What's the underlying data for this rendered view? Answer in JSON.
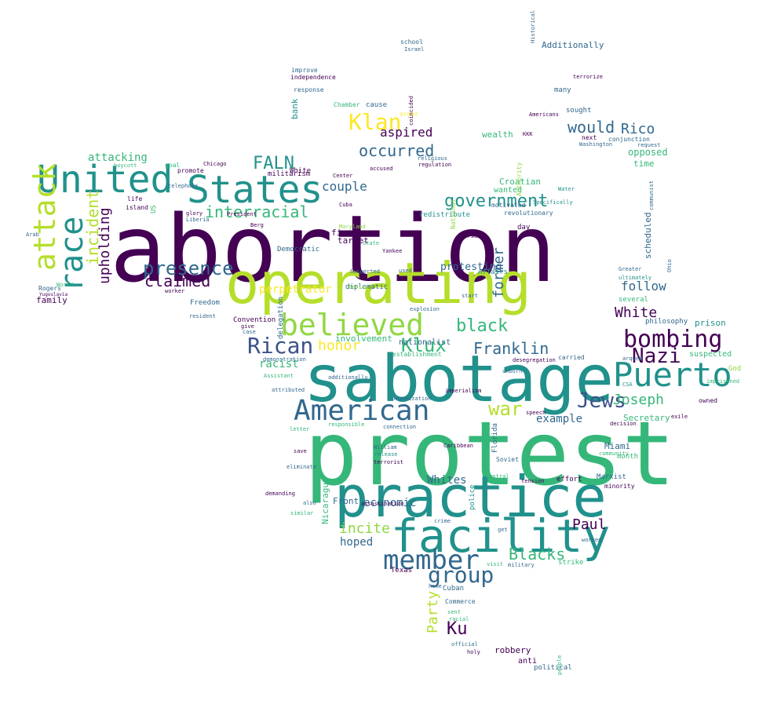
{
  "palette": {
    "purple": "#440154",
    "indigo": "#3b528b",
    "blue": "#31688e",
    "teal": "#21918c",
    "green": "#35b779",
    "lime": "#90d743",
    "yellow": "#fde725",
    "light_green": "#b5de2b"
  },
  "words": [
    {
      "text": "abortion",
      "color": "#440154"
    },
    {
      "text": "protest",
      "color": "#35b779"
    },
    {
      "text": "sabotage",
      "color": "#21918c"
    },
    {
      "text": "practice",
      "color": "#21918c"
    },
    {
      "text": "operating",
      "color": "#b5de2b"
    },
    {
      "text": "facility",
      "color": "#21918c"
    },
    {
      "text": "United",
      "color": "#21918c"
    },
    {
      "text": "States",
      "color": "#21918c"
    },
    {
      "text": "Puerto",
      "color": "#21918c"
    },
    {
      "text": "believed",
      "color": "#90d743"
    },
    {
      "text": "American",
      "color": "#31688e"
    },
    {
      "text": "attack",
      "color": "#b5de2b"
    },
    {
      "text": "race",
      "color": "#21918c"
    },
    {
      "text": "member",
      "color": "#31688e"
    },
    {
      "text": "bombing",
      "color": "#440154"
    },
    {
      "text": "Rican",
      "color": "#3b528b"
    },
    {
      "text": "Klan",
      "color": "#fde725"
    },
    {
      "text": "group",
      "color": "#31688e"
    },
    {
      "text": "presence",
      "color": "#31688e"
    },
    {
      "text": "Klux",
      "color": "#35b779"
    },
    {
      "text": "Nazi",
      "color": "#440154"
    },
    {
      "text": "Jews",
      "color": "#3b528b"
    },
    {
      "text": "government",
      "color": "#21918c"
    },
    {
      "text": "interracial",
      "color": "#35b779"
    },
    {
      "text": "FALN",
      "color": "#21918c"
    },
    {
      "text": "claimed",
      "color": "#440154"
    },
    {
      "text": "war",
      "color": "#b5de2b"
    },
    {
      "text": "Franklin",
      "color": "#31688e"
    },
    {
      "text": "black",
      "color": "#35b779"
    },
    {
      "text": "honor",
      "color": "#fde725"
    },
    {
      "text": "would",
      "color": "#31688e"
    },
    {
      "text": "occurred",
      "color": "#31688e"
    },
    {
      "text": "incident",
      "color": "#b5de2b"
    },
    {
      "text": "upholding",
      "color": "#440154"
    },
    {
      "text": "Ku",
      "color": "#440154"
    },
    {
      "text": "Rico",
      "color": "#31688e"
    },
    {
      "text": "Blacks",
      "color": "#35b779"
    },
    {
      "text": "Joseph",
      "color": "#35b779"
    },
    {
      "text": "White",
      "color": "#440154"
    },
    {
      "text": "incite",
      "color": "#90d743"
    },
    {
      "text": "Paul",
      "color": "#440154"
    },
    {
      "text": "Party",
      "color": "#b5de2b"
    },
    {
      "text": "former",
      "color": "#31688e"
    },
    {
      "text": "hoped",
      "color": "#31688e"
    },
    {
      "text": "perpetrator",
      "color": "#fde725"
    },
    {
      "text": "couple",
      "color": "#31688e"
    },
    {
      "text": "attacking",
      "color": "#35b779"
    },
    {
      "text": "aspired",
      "color": "#440154"
    },
    {
      "text": "racist",
      "color": "#35b779"
    },
    {
      "text": "follow",
      "color": "#31688e"
    },
    {
      "text": "example",
      "color": "#31688e"
    },
    {
      "text": "protesting",
      "color": "#31688e"
    },
    {
      "text": "economic",
      "color": "#31688e"
    },
    {
      "text": "Whites",
      "color": "#31688e"
    },
    {
      "text": "involvement",
      "color": "#35b779"
    },
    {
      "text": "opposed",
      "color": "#35b779"
    },
    {
      "text": "Miami",
      "color": "#31688e"
    },
    {
      "text": "Secretary",
      "color": "#35b779"
    },
    {
      "text": "prison",
      "color": "#21918c"
    },
    {
      "text": "suspected",
      "color": "#35b779"
    },
    {
      "text": "finance",
      "color": "#440154"
    },
    {
      "text": "target",
      "color": "#440154"
    },
    {
      "text": "family",
      "color": "#440154"
    },
    {
      "text": "Additionally",
      "color": "#31688e"
    },
    {
      "text": "time",
      "color": "#35b779"
    },
    {
      "text": "scheduled",
      "color": "#31688e"
    },
    {
      "text": "Croatian",
      "color": "#35b779"
    },
    {
      "text": "wanted",
      "color": "#35b779"
    },
    {
      "text": "wealth",
      "color": "#35b779"
    },
    {
      "text": "Front",
      "color": "#31688e"
    },
    {
      "text": "nationalist",
      "color": "#31688e"
    },
    {
      "text": "Nicaragua",
      "color": "#35b779"
    },
    {
      "text": "robbery",
      "color": "#440154"
    },
    {
      "text": "anti",
      "color": "#440154"
    },
    {
      "text": "political",
      "color": "#31688e"
    },
    {
      "text": "strike",
      "color": "#35b779"
    },
    {
      "text": "Cuban",
      "color": "#31688e"
    },
    {
      "text": "Commerce",
      "color": "#31688e"
    },
    {
      "text": "Texas",
      "color": "#440154"
    },
    {
      "text": "diplomatic",
      "color": "#31688e"
    },
    {
      "text": "Democratic",
      "color": "#31688e"
    },
    {
      "text": "Convention",
      "color": "#440154"
    },
    {
      "text": "Freedom",
      "color": "#31688e"
    },
    {
      "text": "Rogers",
      "color": "#31688e"
    },
    {
      "text": "delegation",
      "color": "#31688e"
    },
    {
      "text": "month",
      "color": "#35b779"
    },
    {
      "text": "minority",
      "color": "#440154"
    },
    {
      "text": "God",
      "color": "#90d743"
    },
    {
      "text": "philosophy",
      "color": "#31688e"
    },
    {
      "text": "several",
      "color": "#35b779"
    },
    {
      "text": "effort",
      "color": "#440154"
    },
    {
      "text": "Marxist",
      "color": "#31688e"
    },
    {
      "text": "sought",
      "color": "#31688e"
    },
    {
      "text": "many",
      "color": "#31688e"
    },
    {
      "text": "next",
      "color": "#440154"
    },
    {
      "text": "bank",
      "color": "#21918c"
    },
    {
      "text": "cause",
      "color": "#31688e"
    },
    {
      "text": "Chamber",
      "color": "#35b779"
    },
    {
      "text": "response",
      "color": "#31688e"
    },
    {
      "text": "improve",
      "color": "#31688e"
    },
    {
      "text": "independence",
      "color": "#440154"
    },
    {
      "text": "school",
      "color": "#31688e"
    },
    {
      "text": "Israel",
      "color": "#31688e"
    },
    {
      "text": "militarism",
      "color": "#440154"
    },
    {
      "text": "goal",
      "color": "#35b779"
    },
    {
      "text": "boycott",
      "color": "#35b779"
    },
    {
      "text": "promote",
      "color": "#440154"
    },
    {
      "text": "life",
      "color": "#440154"
    },
    {
      "text": "island",
      "color": "#440154"
    },
    {
      "text": "World",
      "color": "#35b779"
    },
    {
      "text": "telephone",
      "color": "#31688e"
    },
    {
      "text": "Chicago",
      "color": "#440154"
    },
    {
      "text": "Cuba",
      "color": "#440154"
    },
    {
      "text": "Affairs",
      "color": "#21918c"
    },
    {
      "text": "revolutionary",
      "color": "#31688e"
    },
    {
      "text": "Water",
      "color": "#21918c"
    },
    {
      "text": "motivated",
      "color": "#31688e"
    },
    {
      "text": "Specifically",
      "color": "#21918c"
    },
    {
      "text": "conjunction",
      "color": "#31688e"
    },
    {
      "text": "request",
      "color": "#31688e"
    },
    {
      "text": "Washington",
      "color": "#31688e"
    },
    {
      "text": "redistribute",
      "color": "#21918c"
    },
    {
      "text": "day",
      "color": "#440154"
    },
    {
      "text": "Maryland",
      "color": "#90d743"
    },
    {
      "text": "State",
      "color": "#35b779"
    },
    {
      "text": "Yankee",
      "color": "#440154"
    },
    {
      "text": "used",
      "color": "#31688e"
    },
    {
      "text": "explosion",
      "color": "#31688e"
    },
    {
      "text": "demonstration",
      "color": "#31688e"
    },
    {
      "text": "establishment",
      "color": "#35b779"
    },
    {
      "text": "additionally",
      "color": "#31688e"
    },
    {
      "text": "organization",
      "color": "#31688e"
    },
    {
      "text": "imperialism",
      "color": "#440154"
    },
    {
      "text": "speech",
      "color": "#440154"
    },
    {
      "text": "unborn",
      "color": "#31688e"
    },
    {
      "text": "carried",
      "color": "#31688e"
    },
    {
      "text": "desegregation",
      "color": "#440154"
    },
    {
      "text": "connection",
      "color": "#31688e"
    },
    {
      "text": "William",
      "color": "#31688e"
    },
    {
      "text": "release",
      "color": "#21918c"
    },
    {
      "text": "terrorist",
      "color": "#440154"
    },
    {
      "text": "Caribbean",
      "color": "#440154"
    },
    {
      "text": "police",
      "color": "#21918c"
    },
    {
      "text": "Florida",
      "color": "#31688e"
    },
    {
      "text": "Soviet",
      "color": "#31688e"
    },
    {
      "text": "Central",
      "color": "#35b779"
    },
    {
      "text": "tension",
      "color": "#440154"
    },
    {
      "text": "community",
      "color": "#35b779"
    },
    {
      "text": "decision",
      "color": "#440154"
    },
    {
      "text": "ultimately",
      "color": "#21918c"
    },
    {
      "text": "exile",
      "color": "#440154"
    },
    {
      "text": "owned",
      "color": "#440154"
    },
    {
      "text": "imprisoned",
      "color": "#35b779"
    },
    {
      "text": "arqued",
      "color": "#31688e"
    },
    {
      "text": "CSA",
      "color": "#21918c"
    },
    {
      "text": "communist",
      "color": "#31688e"
    },
    {
      "text": "Greater",
      "color": "#31688e"
    },
    {
      "text": "Ohio",
      "color": "#31688e"
    },
    {
      "text": "worked",
      "color": "#31688e"
    },
    {
      "text": "visit",
      "color": "#35b779"
    },
    {
      "text": "military",
      "color": "#31688e"
    },
    {
      "text": "assassination",
      "color": "#440154"
    },
    {
      "text": "crime",
      "color": "#31688e"
    },
    {
      "text": "get",
      "color": "#31688e"
    },
    {
      "text": "people",
      "color": "#35b779"
    },
    {
      "text": "holy",
      "color": "#440154"
    },
    {
      "text": "sent",
      "color": "#35b779"
    },
    {
      "text": "racial",
      "color": "#35b779"
    },
    {
      "text": "official",
      "color": "#31688e"
    },
    {
      "text": "home",
      "color": "#31688e"
    },
    {
      "text": "also",
      "color": "#31688e"
    },
    {
      "text": "similar",
      "color": "#35b779"
    },
    {
      "text": "demanding",
      "color": "#440154"
    },
    {
      "text": "letter",
      "color": "#35b779"
    },
    {
      "text": "save",
      "color": "#440154"
    },
    {
      "text": "eliminate",
      "color": "#31688e"
    },
    {
      "text": "responsible",
      "color": "#35b779"
    },
    {
      "text": "attributed",
      "color": "#31688e"
    },
    {
      "text": "Assistant",
      "color": "#35b779"
    },
    {
      "text": "case",
      "color": "#31688e"
    },
    {
      "text": "give",
      "color": "#440154"
    },
    {
      "text": "resident",
      "color": "#31688e"
    },
    {
      "text": "US",
      "color": "#35b779"
    },
    {
      "text": "Berg",
      "color": "#440154"
    },
    {
      "text": "glory",
      "color": "#440154"
    },
    {
      "text": "Liberia",
      "color": "#31688e"
    },
    {
      "text": "President",
      "color": "#440154"
    },
    {
      "text": "Yugoslavia",
      "color": "#440154"
    },
    {
      "text": "Arab",
      "color": "#31688e"
    },
    {
      "text": "worker",
      "color": "#440154"
    },
    {
      "text": "Historical",
      "color": "#31688e"
    },
    {
      "text": "terrorize",
      "color": "#440154"
    },
    {
      "text": "KKK",
      "color": "#440154"
    },
    {
      "text": "Americans",
      "color": "#440154"
    },
    {
      "text": "religious",
      "color": "#31688e"
    },
    {
      "text": "accused",
      "color": "#440154"
    },
    {
      "text": "regulation",
      "color": "#440154"
    },
    {
      "text": "order",
      "color": "#fde725"
    },
    {
      "text": "coincided",
      "color": "#440154"
    },
    {
      "text": "Review",
      "color": "#90d743"
    },
    {
      "text": "National",
      "color": "#90d743"
    },
    {
      "text": "start",
      "color": "#31688e"
    },
    {
      "text": "White",
      "color": "#440154"
    },
    {
      "text": "Center",
      "color": "#440154"
    },
    {
      "text": "Authority",
      "color": "#90d743"
    },
    {
      "text": "Suspected",
      "color": "#31688e"
    },
    {
      "text": "nurse",
      "color": "#440154"
    }
  ]
}
